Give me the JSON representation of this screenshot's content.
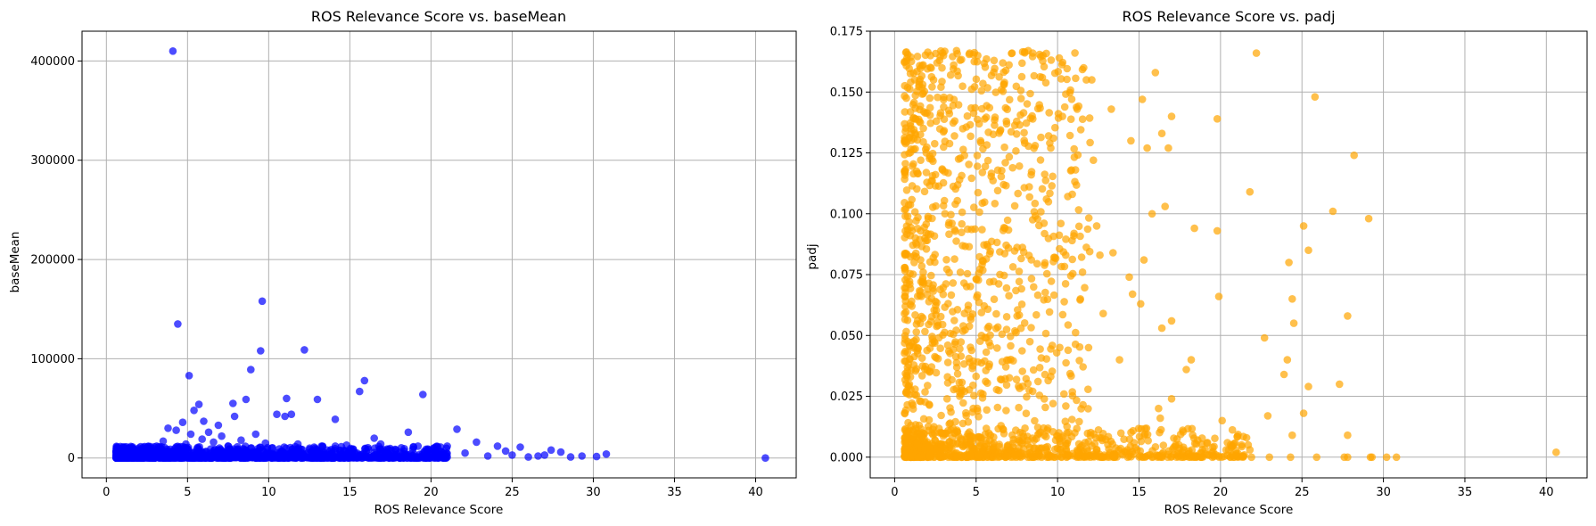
{
  "chart_data": [
    {
      "type": "scatter",
      "title": "ROS Relevance Score vs. baseMean",
      "xlabel": "ROS Relevance Score",
      "ylabel": "baseMean",
      "xlim": [
        -1.5,
        42.5
      ],
      "ylim": [
        -20000,
        430000
      ],
      "xticks": [
        0,
        5,
        10,
        15,
        20,
        25,
        30,
        35,
        40
      ],
      "yticks": [
        0,
        100000,
        200000,
        300000,
        400000
      ],
      "grid": true,
      "color": "#0000ff",
      "alpha": 0.7,
      "points": [
        [
          4.1,
          410000
        ],
        [
          9.6,
          158000
        ],
        [
          4.4,
          135000
        ],
        [
          12.2,
          109000
        ],
        [
          9.5,
          108000
        ],
        [
          8.9,
          89000
        ],
        [
          5.1,
          83000
        ],
        [
          15.9,
          78000
        ],
        [
          15.6,
          67000
        ],
        [
          19.5,
          64000
        ],
        [
          13.0,
          59000
        ],
        [
          11.1,
          60000
        ],
        [
          8.6,
          59000
        ],
        [
          5.7,
          54000
        ],
        [
          7.8,
          55000
        ],
        [
          5.4,
          48000
        ],
        [
          10.5,
          44000
        ],
        [
          11.4,
          44000
        ],
        [
          14.1,
          39000
        ],
        [
          7.9,
          42000
        ],
        [
          11.0,
          42000
        ],
        [
          6.0,
          37000
        ],
        [
          4.7,
          36000
        ],
        [
          3.8,
          30000
        ],
        [
          21.6,
          29000
        ],
        [
          18.6,
          26000
        ],
        [
          6.9,
          33000
        ],
        [
          9.2,
          24000
        ],
        [
          16.5,
          20000
        ],
        [
          22.8,
          16000
        ],
        [
          24.1,
          12000
        ],
        [
          25.5,
          11000
        ],
        [
          27.4,
          8000
        ],
        [
          28.0,
          6000
        ],
        [
          30.8,
          4000
        ],
        [
          29.3,
          2000
        ],
        [
          30.2,
          1500
        ],
        [
          40.6,
          0
        ],
        [
          26.0,
          1000
        ],
        [
          25.0,
          3000
        ],
        [
          22.1,
          5000
        ],
        [
          20.3,
          4500
        ],
        [
          19.8,
          9000
        ],
        [
          19.2,
          12000
        ],
        [
          18.1,
          6000
        ],
        [
          17.3,
          9000
        ],
        [
          16.9,
          14000
        ],
        [
          15.2,
          9000
        ],
        [
          14.8,
          13000
        ],
        [
          13.6,
          8000
        ],
        [
          12.8,
          11000
        ],
        [
          12.4,
          5000
        ],
        [
          11.8,
          14000
        ],
        [
          10.8,
          7000
        ],
        [
          10.2,
          10000
        ],
        [
          9.8,
          15000
        ],
        [
          9.0,
          6000
        ],
        [
          8.3,
          18000
        ],
        [
          7.5,
          12000
        ],
        [
          7.1,
          22000
        ],
        [
          6.6,
          16000
        ],
        [
          6.3,
          26000
        ],
        [
          5.9,
          19000
        ],
        [
          5.2,
          24000
        ],
        [
          4.9,
          14000
        ],
        [
          4.3,
          28000
        ],
        [
          3.5,
          17000
        ],
        [
          3.1,
          12000
        ],
        [
          2.6,
          9000
        ],
        [
          2.2,
          7000
        ],
        [
          1.8,
          5000
        ],
        [
          1.4,
          3000
        ],
        [
          1.0,
          1500
        ],
        [
          0.7,
          500
        ],
        [
          23.5,
          2000
        ],
        [
          27.0,
          3000
        ],
        [
          28.6,
          1000
        ],
        [
          24.6,
          7000
        ],
        [
          26.6,
          2000
        ],
        [
          21.0,
          1000
        ]
      ],
      "cloud": {
        "x_range": [
          0.6,
          21.0
        ],
        "y_max": 12000,
        "count": 1300
      }
    },
    {
      "type": "scatter",
      "title": "ROS Relevance Score vs. padj",
      "xlabel": "ROS Relevance Score",
      "ylabel": "padj",
      "xlim": [
        -1.5,
        42.5
      ],
      "ylim": [
        -0.0085,
        0.175
      ],
      "xticks": [
        0,
        5,
        10,
        15,
        20,
        25,
        30,
        35,
        40
      ],
      "yticks": [
        0.0,
        0.025,
        0.05,
        0.075,
        0.1,
        0.125,
        0.15,
        0.175
      ],
      "grid": true,
      "color": "#ffa500",
      "alpha": 0.7,
      "points": [
        [
          22.2,
          0.166
        ],
        [
          25.8,
          0.148
        ],
        [
          16.0,
          0.158
        ],
        [
          17.0,
          0.14
        ],
        [
          19.8,
          0.139
        ],
        [
          28.2,
          0.124
        ],
        [
          13.3,
          0.143
        ],
        [
          15.2,
          0.147
        ],
        [
          14.5,
          0.13
        ],
        [
          15.5,
          0.127
        ],
        [
          21.8,
          0.109
        ],
        [
          26.9,
          0.101
        ],
        [
          29.1,
          0.098
        ],
        [
          16.4,
          0.133
        ],
        [
          16.8,
          0.127
        ],
        [
          15.8,
          0.1
        ],
        [
          16.6,
          0.103
        ],
        [
          18.4,
          0.094
        ],
        [
          19.8,
          0.093
        ],
        [
          25.1,
          0.095
        ],
        [
          25.4,
          0.085
        ],
        [
          24.2,
          0.08
        ],
        [
          24.4,
          0.065
        ],
        [
          14.4,
          0.074
        ],
        [
          15.3,
          0.081
        ],
        [
          13.4,
          0.084
        ],
        [
          19.9,
          0.066
        ],
        [
          15.1,
          0.063
        ],
        [
          14.6,
          0.067
        ],
        [
          16.4,
          0.053
        ],
        [
          17.0,
          0.056
        ],
        [
          27.8,
          0.058
        ],
        [
          24.5,
          0.055
        ],
        [
          22.7,
          0.049
        ],
        [
          24.1,
          0.04
        ],
        [
          18.2,
          0.04
        ],
        [
          17.9,
          0.036
        ],
        [
          13.8,
          0.04
        ],
        [
          27.3,
          0.03
        ],
        [
          25.4,
          0.029
        ],
        [
          23.9,
          0.034
        ],
        [
          22.9,
          0.017
        ],
        [
          25.1,
          0.018
        ],
        [
          27.8,
          0.009
        ],
        [
          24.4,
          0.009
        ],
        [
          21.7,
          0.005
        ],
        [
          21.8,
          0.003
        ],
        [
          21.6,
          0.008
        ],
        [
          20.1,
          0.015
        ],
        [
          17.0,
          0.024
        ],
        [
          16.2,
          0.02
        ],
        [
          16.3,
          0.016
        ],
        [
          18.6,
          0.007
        ],
        [
          19.2,
          0.006
        ],
        [
          40.6,
          0.002
        ],
        [
          30.8,
          0.0
        ],
        [
          30.2,
          0.0
        ],
        [
          29.3,
          0.0
        ],
        [
          29.2,
          0.0
        ],
        [
          27.8,
          0.0
        ],
        [
          27.6,
          0.0
        ],
        [
          25.9,
          0.0
        ],
        [
          24.3,
          0.0
        ],
        [
          23.0,
          0.0
        ],
        [
          21.9,
          0.0
        ],
        [
          20.6,
          0.0
        ],
        [
          19.5,
          0.0
        ],
        [
          18.8,
          0.0
        ],
        [
          18.3,
          0.0
        ],
        [
          17.6,
          0.0
        ],
        [
          0.6,
          0.059
        ],
        [
          0.8,
          0.099
        ],
        [
          1.0,
          0.133
        ],
        [
          0.7,
          0.006
        ],
        [
          0.9,
          0.03
        ],
        [
          1.2,
          0.08
        ],
        [
          1.3,
          0.088
        ],
        [
          1.5,
          0.153
        ],
        [
          1.4,
          0.045
        ],
        [
          1.6,
          0.122
        ],
        [
          2.2,
          0.165
        ],
        [
          2.6,
          0.162
        ],
        [
          3.0,
          0.165
        ],
        [
          3.8,
          0.167
        ],
        [
          4.6,
          0.166
        ],
        [
          5.1,
          0.165
        ],
        [
          6.1,
          0.163
        ],
        [
          7.2,
          0.166
        ],
        [
          8.2,
          0.167
        ],
        [
          9.1,
          0.165
        ],
        [
          10.1,
          0.164
        ],
        [
          11.2,
          0.143
        ],
        [
          12.1,
          0.155
        ],
        [
          11.6,
          0.16
        ],
        [
          10.3,
          0.14
        ],
        [
          12.4,
          0.095
        ],
        [
          12.8,
          0.059
        ],
        [
          12.6,
          0.083
        ],
        [
          12.2,
          0.122
        ],
        [
          11.9,
          0.045
        ],
        [
          10.9,
          0.108
        ],
        [
          10.5,
          0.083
        ],
        [
          11.4,
          0.065
        ],
        [
          10.2,
          0.096
        ],
        [
          11.1,
          0.118
        ]
      ],
      "cloud": {
        "x_range": [
          0.6,
          12.0
        ],
        "y_max": 0.167,
        "count": 1000
      },
      "floor": {
        "x_range": [
          0.6,
          21.5
        ],
        "y_max": 0.012,
        "count": 700
      }
    }
  ]
}
